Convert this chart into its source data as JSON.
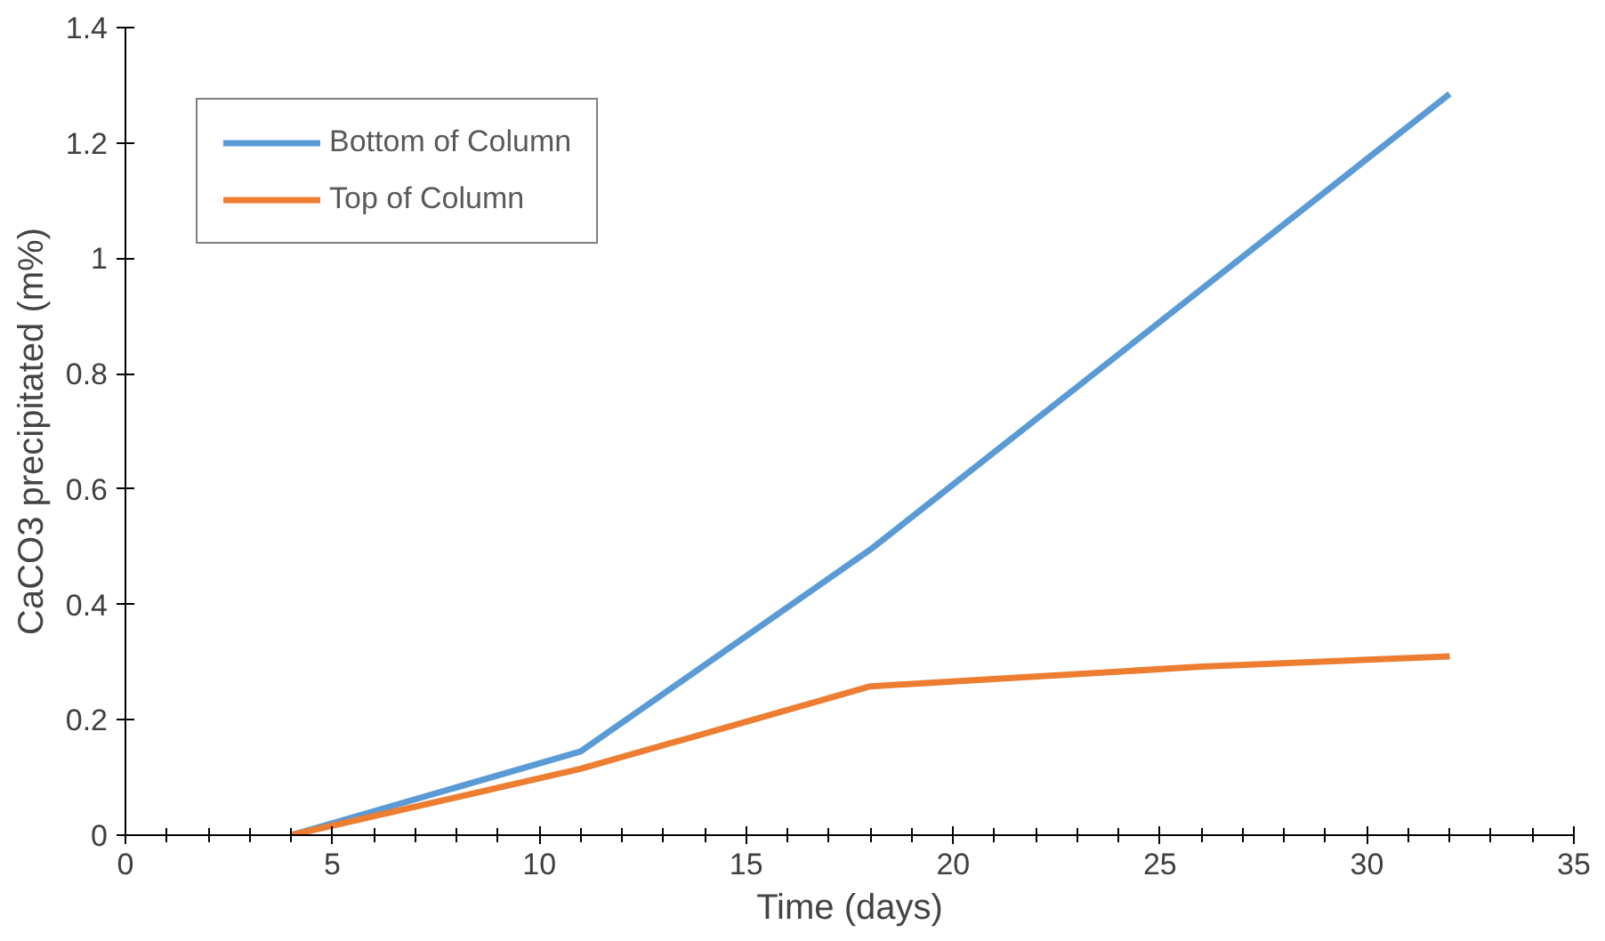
{
  "chart_data": {
    "type": "line",
    "xlabel": "Time (days)",
    "ylabel": "CaCO3 precipitated (m%)",
    "xlim": [
      0,
      35
    ],
    "xticks": [
      0,
      5,
      10,
      15,
      20,
      25,
      30,
      35
    ],
    "ylim": [
      0,
      1.4
    ],
    "yticks": [
      0,
      {
        "value": 0.2,
        "label": "0.2"
      },
      {
        "value": 0.4,
        "label": "0.4"
      },
      {
        "value": 0.6,
        "label": "0.6"
      },
      {
        "value": 0.8,
        "label": "0.8"
      },
      1,
      {
        "value": 1.2,
        "label": "1.2"
      },
      {
        "value": 1.4,
        "label": "1.4"
      }
    ],
    "grid": false,
    "legend": "top left",
    "marker": "none",
    "line_style": "solid",
    "series": [
      {
        "name": "Bottom of Column",
        "color": "#5b9bd5",
        "x": [
          4,
          11,
          18,
          32
        ],
        "values": [
          0,
          0.145,
          0.495,
          1.285
        ]
      },
      {
        "name": "Top of Column",
        "color": "#ed7d31",
        "x": [
          4,
          11,
          18,
          26,
          32
        ],
        "values": [
          0,
          0.115,
          0.258,
          0.292,
          0.31
        ]
      }
    ]
  }
}
